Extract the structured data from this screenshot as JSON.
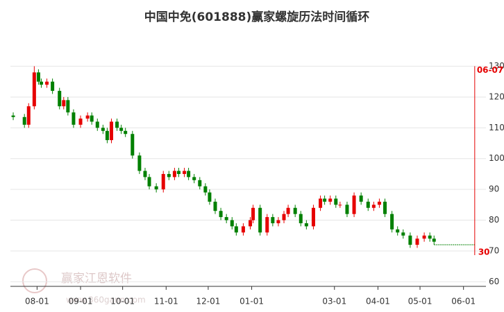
{
  "chart_data": {
    "type": "candlestick",
    "title": "中国中免(601888)赢家螺旋历法时间循环",
    "watermark": "赢家江恩软件",
    "watermark_url": "www.360gann.com",
    "xlim": [
      -7,
      332
    ],
    "xticks": [
      {
        "value": 12,
        "label": "08-01"
      },
      {
        "value": 43,
        "label": "09-01"
      },
      {
        "value": 73,
        "label": "10-01"
      },
      {
        "value": 104,
        "label": "11-01"
      },
      {
        "value": 134,
        "label": "12-01"
      },
      {
        "value": 165,
        "label": "01-01"
      },
      {
        "value": 224,
        "label": "03-01"
      },
      {
        "value": 255,
        "label": "04-01"
      },
      {
        "value": 285,
        "label": "05-01"
      },
      {
        "value": 316,
        "label": "06-01"
      }
    ],
    "ylim": [
      58.5,
      133.5
    ],
    "yticks": [
      60,
      70,
      80,
      90,
      100,
      110,
      120,
      130
    ],
    "grid": true,
    "up_color": "#e60000",
    "down_color": "#008000",
    "x": [
      -5,
      3,
      6,
      10,
      13,
      15,
      19,
      23,
      28,
      31,
      34,
      38,
      43,
      48,
      51,
      55,
      59,
      62,
      65,
      69,
      72,
      75,
      80,
      85,
      89,
      92,
      97,
      102,
      106,
      110,
      113,
      117,
      120,
      124,
      128,
      132,
      135,
      139,
      143,
      147,
      151,
      154,
      159,
      164,
      166,
      171,
      176,
      180,
      184,
      188,
      191,
      196,
      200,
      204,
      209,
      214,
      217,
      221,
      225,
      228,
      233,
      238,
      243,
      248,
      252,
      256,
      260,
      265,
      269,
      273,
      278,
      283,
      288,
      292,
      295
    ],
    "open": [
      114,
      113.5,
      111,
      117,
      128,
      125,
      124,
      125,
      122,
      117,
      119,
      115,
      111,
      113,
      114,
      112,
      110,
      109,
      106,
      112,
      110,
      109,
      108,
      101,
      96,
      94,
      91,
      90,
      95,
      94,
      96,
      95,
      96,
      94,
      93,
      91,
      89,
      86,
      83,
      81,
      80,
      78,
      76,
      78,
      80,
      84,
      76,
      81,
      79,
      80,
      82,
      84,
      82,
      79,
      78,
      84,
      87,
      86,
      87,
      85,
      85,
      82,
      88,
      86,
      84,
      85,
      86,
      82,
      77,
      76,
      75,
      72,
      74,
      75,
      74
    ],
    "close": [
      113.5,
      111,
      117,
      128,
      125,
      124,
      125,
      122,
      117,
      119,
      115,
      111,
      113,
      114,
      112,
      110,
      109,
      106,
      112,
      110,
      109,
      108,
      101,
      96,
      94,
      91,
      90,
      95,
      94,
      96,
      95,
      96,
      94,
      93,
      91,
      89,
      86,
      83,
      81,
      80,
      78,
      76,
      78,
      80,
      84,
      76,
      81,
      79,
      80,
      82,
      84,
      82,
      79,
      78,
      84,
      87,
      86,
      87,
      85,
      85,
      82,
      88,
      86,
      84,
      85,
      86,
      82,
      77,
      76,
      75,
      72,
      74,
      75,
      74,
      73
    ],
    "high": [
      115,
      114.5,
      118,
      130,
      129,
      126,
      126,
      126,
      123,
      120,
      120,
      116,
      114,
      115,
      115,
      113,
      111,
      110,
      113,
      113,
      111,
      110,
      109,
      102,
      97,
      95,
      92,
      96,
      96,
      97,
      97,
      97,
      97,
      95,
      94,
      92,
      90,
      87,
      84,
      82,
      81,
      79,
      79,
      81,
      85,
      85,
      82,
      82,
      81,
      83,
      85,
      85,
      83,
      80,
      85,
      88,
      88,
      88,
      88,
      86,
      86,
      89,
      89,
      87,
      86,
      87,
      87,
      83,
      78,
      77,
      76,
      75,
      76,
      76,
      75
    ],
    "low": [
      112.5,
      110,
      110,
      116,
      124,
      123,
      123,
      121,
      116,
      116,
      114,
      110,
      110,
      112,
      111,
      109,
      108,
      105,
      105,
      109,
      108,
      107,
      100,
      95,
      93,
      90,
      89,
      89,
      93,
      93,
      94,
      94,
      93,
      92,
      90,
      88,
      85,
      82,
      80,
      79,
      77,
      75,
      75,
      77,
      79,
      75,
      75,
      78,
      78,
      79,
      81,
      81,
      78,
      77,
      77,
      83,
      85,
      85,
      84,
      84,
      81,
      81,
      85,
      83,
      83,
      84,
      81,
      76,
      75,
      74,
      71,
      71,
      73,
      73,
      72
    ],
    "guide_line": {
      "from_x": 295,
      "to_x": 324,
      "value": 72,
      "color": "#008000"
    },
    "cycle_line": {
      "x": 324,
      "label": "06-07",
      "count": "30",
      "color": "#e60000"
    }
  }
}
